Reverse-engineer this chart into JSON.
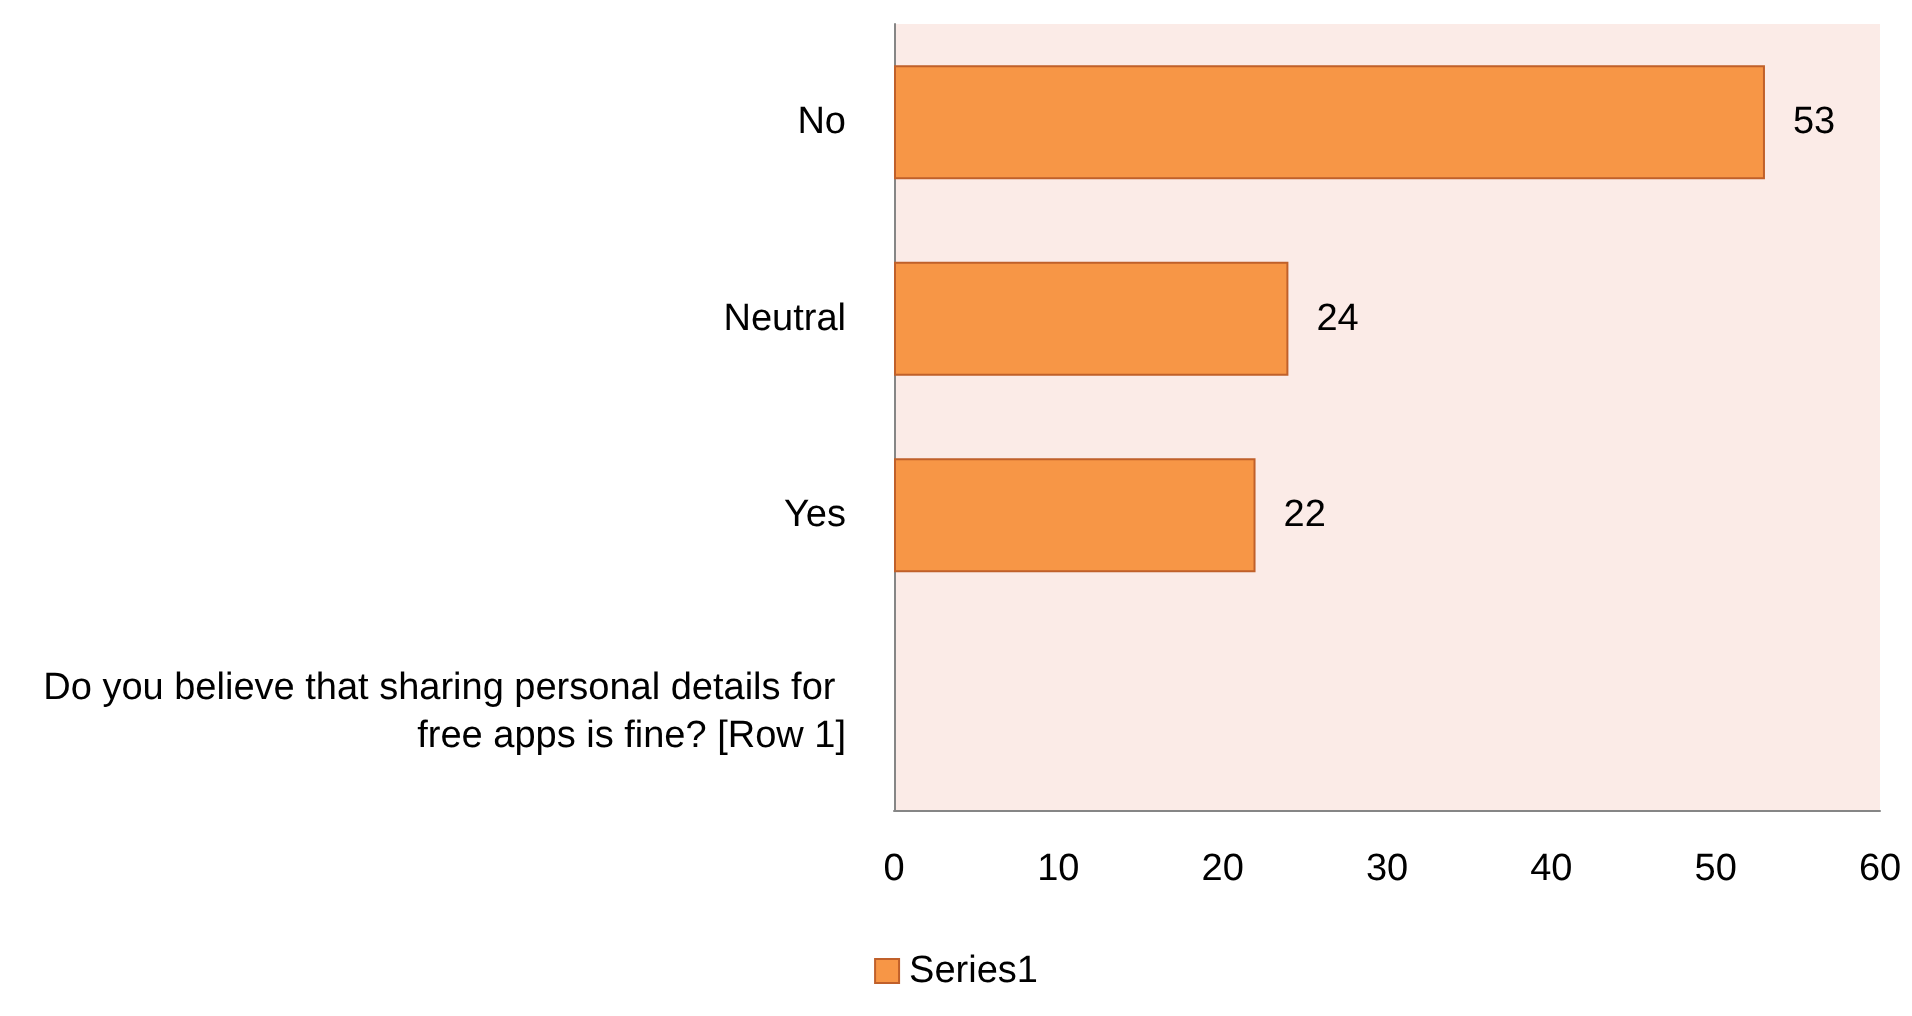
{
  "chart_data": {
    "type": "bar",
    "orientation": "horizontal",
    "categories": [
      "No",
      "Neutral",
      "Yes",
      "Do you believe that sharing personal details for free apps is fine? [Row 1]"
    ],
    "series": [
      {
        "name": "Series1",
        "color": "#f79646",
        "values": [
          53,
          24,
          22,
          null
        ]
      }
    ],
    "xlim": [
      0,
      60
    ],
    "xticks": [
      0,
      10,
      20,
      30,
      40,
      50,
      60
    ],
    "grid": false,
    "legend": "bottom",
    "data_labels": true
  }
}
